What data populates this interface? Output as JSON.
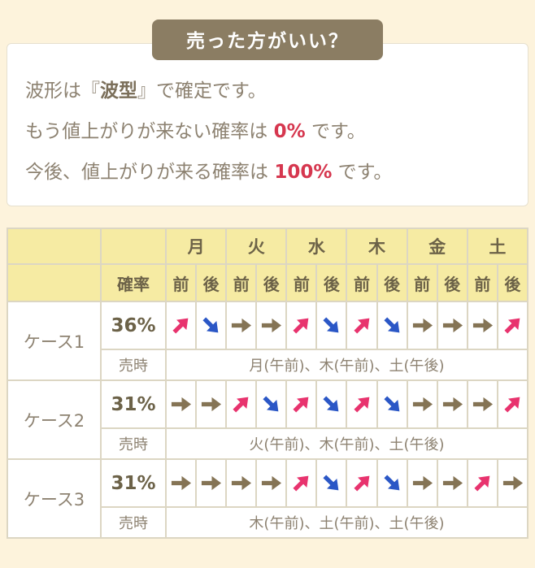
{
  "header": {
    "title": "売った方がいい？"
  },
  "summary": {
    "line1_pre": "波形は『",
    "line1_bold": "波型",
    "line1_post": "』で確定です。",
    "line2_pre": "もう値上がりが来ない確率は ",
    "line2_value": "0%",
    "line2_post": " です。",
    "line3_pre": "今後、値上がりが来る確率は ",
    "line3_value": "100%",
    "line3_post": " です。"
  },
  "table": {
    "days": [
      "月",
      "火",
      "水",
      "木",
      "金",
      "土"
    ],
    "ampm": [
      "前",
      "後"
    ],
    "prob_header": "確率",
    "sell_label": "売時",
    "cases": [
      {
        "name": "ケース1",
        "prob": "36%",
        "arrows": [
          "up",
          "down",
          "flat",
          "flat",
          "up",
          "down",
          "up",
          "down",
          "flat",
          "flat",
          "flat",
          "up"
        ],
        "sell": "月(午前)、木(午前)、土(午後)"
      },
      {
        "name": "ケース2",
        "prob": "31%",
        "arrows": [
          "flat",
          "flat",
          "up",
          "down",
          "up",
          "down",
          "up",
          "down",
          "flat",
          "flat",
          "flat",
          "up"
        ],
        "sell": "火(午前)、木(午前)、土(午後)"
      },
      {
        "name": "ケース3",
        "prob": "31%",
        "arrows": [
          "flat",
          "flat",
          "flat",
          "flat",
          "up",
          "down",
          "up",
          "down",
          "flat",
          "flat",
          "up",
          "flat"
        ],
        "sell": "木(午前)、土(午前)、土(午後)"
      }
    ],
    "colors": {
      "up": "#e8336e",
      "down": "#2b57c6",
      "flat": "#857455",
      "accent_red": "#d6374f",
      "header_bg": "#f6eba3",
      "badge_bg": "#8b7d63",
      "page_bg": "#fdf3dc"
    }
  }
}
